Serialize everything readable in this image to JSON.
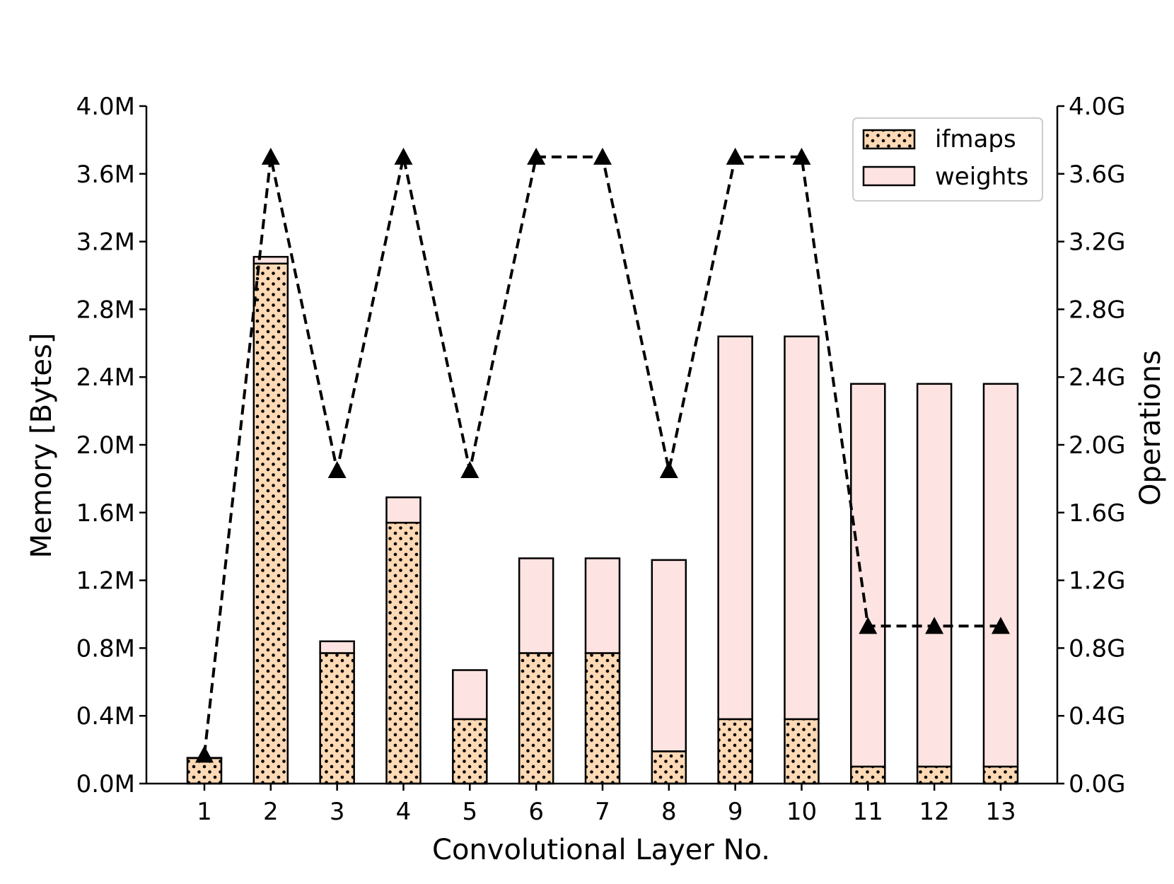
{
  "chart_data": {
    "type": "bar",
    "stacked": true,
    "title": "",
    "xlabel": "Convolutional Layer No.",
    "ylabel": "Memory [Bytes]",
    "y2label": "Operations",
    "categories": [
      "1",
      "2",
      "3",
      "4",
      "5",
      "6",
      "7",
      "8",
      "9",
      "10",
      "11",
      "12",
      "13"
    ],
    "ylim": [
      0,
      4.0
    ],
    "y_unit": "M",
    "y2lim": [
      0,
      4.0
    ],
    "y2_unit": "G",
    "yticks": [
      "0.0M",
      "0.4M",
      "0.8M",
      "1.2M",
      "1.6M",
      "2.0M",
      "2.4M",
      "2.8M",
      "3.2M",
      "3.6M",
      "4.0M"
    ],
    "y2ticks": [
      "0.0G",
      "0.4G",
      "0.8G",
      "1.2G",
      "1.6G",
      "2.0G",
      "2.4G",
      "2.8G",
      "3.2G",
      "3.6G",
      "4.0G"
    ],
    "series": [
      {
        "name": "ifmaps",
        "kind": "bar",
        "axis": "left",
        "color": "#fdd9b5",
        "pattern": "dots",
        "values": [
          0.15,
          3.07,
          0.77,
          1.54,
          0.38,
          0.77,
          0.77,
          0.19,
          0.38,
          0.38,
          0.1,
          0.1,
          0.1
        ]
      },
      {
        "name": "weights",
        "kind": "bar",
        "axis": "left",
        "color": "#fde3e1",
        "values": [
          0.002,
          0.04,
          0.07,
          0.15,
          0.29,
          0.56,
          0.56,
          1.13,
          2.26,
          2.26,
          2.26,
          2.26,
          2.26
        ]
      },
      {
        "kind": "line",
        "axis": "right",
        "style": "dashed",
        "marker": "triangle",
        "color": "#000000",
        "values": [
          0.17,
          3.7,
          1.85,
          3.7,
          1.85,
          3.7,
          3.7,
          1.85,
          3.7,
          3.7,
          0.93,
          0.93,
          0.93
        ]
      }
    ],
    "legend": {
      "position": "top-right",
      "entries": [
        "ifmaps",
        "weights"
      ]
    },
    "grid": false
  }
}
